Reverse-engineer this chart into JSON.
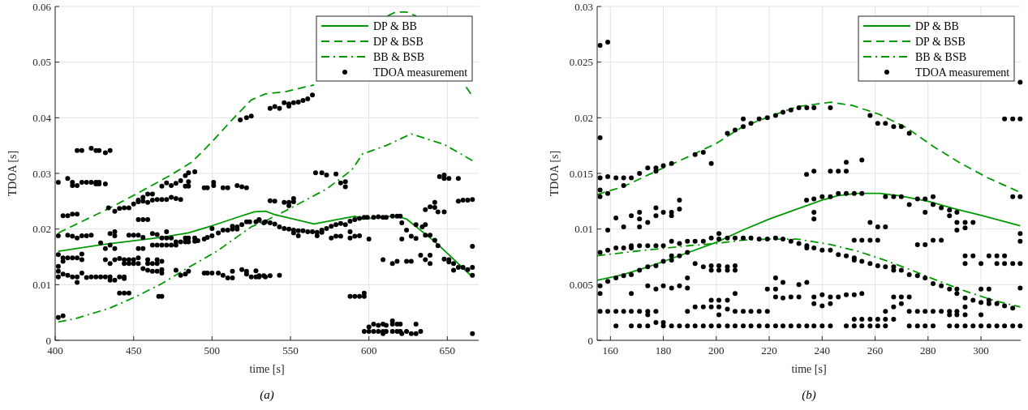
{
  "chart_data": [
    {
      "type": "line",
      "xlabel": "time [s]",
      "ylabel": "TDOA [s]",
      "annotations": [
        "(a)"
      ],
      "xlim": [
        400,
        670
      ],
      "ylim": [
        0,
        0.06
      ],
      "xticks": [
        400,
        450,
        500,
        550,
        600,
        650
      ],
      "yticks": [
        0,
        0.01,
        0.02,
        0.03,
        0.04,
        0.05,
        0.06
      ],
      "grid": true,
      "legend": "top right",
      "series": [
        {
          "name": "DP & BB",
          "type": "line",
          "line_style": "solid",
          "color": "#009900",
          "x": [
            402,
            430,
            468,
            485,
            499,
            516,
            527,
            534,
            540,
            565,
            591,
            596,
            617,
            624,
            643,
            666
          ],
          "values": [
            0.016,
            0.0172,
            0.0185,
            0.0193,
            0.0205,
            0.0221,
            0.0231,
            0.0232,
            0.0226,
            0.0209,
            0.0223,
            0.0218,
            0.0224,
            0.0218,
            0.0175,
            0.0114
          ]
        },
        {
          "name": "DP & BSB",
          "type": "line",
          "line_style": "dashed",
          "color": "#009900",
          "x": [
            402,
            435,
            451,
            473,
            487,
            499,
            515,
            525,
            534,
            547,
            565,
            590,
            612,
            617,
            624,
            630,
            645,
            662,
            666
          ],
          "values": [
            0.0193,
            0.0238,
            0.0262,
            0.0296,
            0.032,
            0.0354,
            0.0403,
            0.0432,
            0.0443,
            0.0447,
            0.0459,
            null,
            0.0583,
            0.059,
            0.059,
            0.0583,
            null,
            0.0455,
            0.0439
          ]
        },
        {
          "name": "BB & BSB",
          "type": "line",
          "line_style": "dashdot",
          "color": "#009900",
          "x": [
            402,
            413,
            435,
            451,
            468,
            485,
            503,
            525,
            535,
            547,
            573,
            589,
            596,
            611,
            627,
            648,
            666
          ],
          "values": [
            0.0033,
            0.0039,
            0.0058,
            0.0078,
            0.0102,
            0.0131,
            0.016,
            0.0204,
            0.0216,
            0.0233,
            0.0272,
            0.0306,
            0.0335,
            0.035,
            0.0371,
            0.0352,
            0.0323
          ]
        },
        {
          "name": "TDOA measurement",
          "type": "scatter",
          "marker": "circle",
          "color": "#000000",
          "x": [
            402,
            408,
            411,
            411,
            414,
            417,
            420,
            423,
            426,
            426,
            428,
            428,
            432,
            414,
            417,
            423,
            426,
            428,
            432,
            435,
            405,
            408,
            411,
            414,
            402,
            408,
            411,
            414,
            417,
            420,
            423,
            429,
            435,
            438,
            438,
            435,
            432,
            438,
            402,
            402,
            405,
            405,
            408,
            411,
            414,
            417,
            417,
            402,
            402,
            405,
            408,
            411,
            414,
            414,
            417,
            420,
            423,
            426,
            429,
            432,
            435,
            435,
            438,
            441,
            444,
            444,
            432,
            435,
            438,
            441,
            444,
            444,
            447,
            447,
            450,
            450,
            453,
            453,
            441,
            444,
            447,
            402,
            405,
            434,
            438,
            441,
            444,
            447,
            450,
            453,
            453,
            456,
            456,
            459,
            459,
            462,
            462,
            465,
            468,
            471,
            474,
            477,
            480,
            453,
            456,
            459,
            447,
            450,
            453,
            456,
            453,
            456,
            456,
            459,
            462,
            465,
            468,
            468,
            459,
            459,
            462,
            465,
            465,
            468,
            462,
            465,
            468,
            471,
            474,
            477,
            477,
            480,
            483,
            485,
            489,
            491,
            495,
            497,
            500,
            500,
            504,
            507,
            510,
            513,
            513,
            516,
            516,
            519,
            522,
            524,
            528,
            530,
            534,
            462,
            465,
            468,
            471,
            471,
            474,
            483,
            485,
            489,
            468,
            471,
            474,
            477,
            480,
            483,
            483,
            485,
            485,
            485,
            489,
            466,
            468,
            477,
            480,
            483,
            485,
            495,
            497,
            500,
            504,
            507,
            510,
            513,
            513,
            519,
            522,
            522,
            525,
            528,
            528,
            530,
            534,
            495,
            497,
            501,
            501,
            507,
            510,
            516,
            519,
            522,
            518,
            522,
            525,
            537,
            540,
            543,
            546,
            549,
            549,
            552,
            555,
            558,
            561,
            564,
            566,
            570,
            573,
            579,
            582,
            585,
            585,
            537,
            540,
            546,
            549,
            549,
            552,
            552,
            530,
            533,
            537,
            540,
            543,
            546,
            549,
            552,
            552,
            555,
            555,
            558,
            561,
            564,
            567,
            567,
            570,
            570,
            573,
            576,
            579,
            582,
            585,
            588,
            591,
            594,
            597,
            599,
            603,
            606,
            609,
            611,
            615,
            618,
            620,
            576,
            579,
            582,
            588,
            588,
            591,
            594,
            600,
            530,
            533,
            537,
            543,
            588,
            591,
            594,
            597,
            597,
            597,
            600,
            600,
            603,
            603,
            606,
            606,
            609,
            609,
            609,
            611,
            611,
            615,
            615,
            615,
            618,
            618,
            620,
            620,
            621,
            624,
            627,
            630,
            630,
            633,
            609,
            615,
            618,
            624,
            627,
            621,
            624,
            627,
            630,
            621,
            630,
            634,
            636,
            636,
            639,
            642,
            644,
            636,
            639,
            642,
            642,
            644,
            648,
            633,
            636,
            639,
            639,
            648,
            651,
            651,
            654,
            654,
            657,
            660,
            663,
            666,
            666,
            645,
            648,
            648,
            651,
            657,
            657,
            660,
            663,
            666,
            666,
            666
          ],
          "values": [
            0.0284,
            0.0291,
            0.0284,
            0.0278,
            0.0278,
            0.0284,
            0.0284,
            0.0284,
            0.0284,
            0.0281,
            0.0284,
            0.0281,
            0.0281,
            0.0341,
            0.0341,
            0.0345,
            0.0341,
            0.0341,
            0.0337,
            0.0341,
            0.0224,
            0.0224,
            0.0227,
            0.0227,
            0.0188,
            0.0189,
            0.0187,
            0.0184,
            0.0188,
            0.0188,
            0.0189,
            0.0175,
            0.0192,
            0.0195,
            0.0188,
            0.0171,
            0.0165,
            0.0165,
            0.0154,
            0.0133,
            0.0148,
            0.0142,
            0.0148,
            0.0148,
            0.0148,
            0.0155,
            0.0145,
            0.0124,
            0.0114,
            0.0119,
            0.0117,
            0.0114,
            0.0114,
            0.0104,
            0.0121,
            0.0113,
            0.0114,
            0.0114,
            0.0114,
            0.0114,
            0.0114,
            0.0108,
            0.0108,
            0.0114,
            0.0114,
            0.0111,
            0.0145,
            0.0138,
            0.0145,
            0.0147,
            0.0145,
            0.0138,
            0.0145,
            0.0138,
            0.0145,
            0.0138,
            0.0148,
            0.0138,
            0.0085,
            0.0085,
            0.0085,
            0.0041,
            0.0044,
            0.0238,
            0.0232,
            0.0237,
            0.0238,
            0.0238,
            0.0245,
            0.0249,
            0.0252,
            0.0257,
            0.025,
            0.0248,
            0.0263,
            0.0263,
            0.0252,
            0.0253,
            0.0253,
            0.0253,
            0.0257,
            0.0255,
            0.0253,
            0.0217,
            0.0217,
            0.0217,
            0.0189,
            0.0189,
            0.0189,
            0.0185,
            0.0165,
            0.0165,
            0.0129,
            0.0126,
            0.0124,
            0.0124,
            0.0127,
            0.0121,
            0.0145,
            0.0138,
            0.0138,
            0.0145,
            0.0138,
            0.0142,
            0.0171,
            0.0171,
            0.0171,
            0.0171,
            0.0171,
            0.0171,
            0.0177,
            0.0177,
            0.0177,
            0.0177,
            0.0178,
            0.0179,
            0.0182,
            0.0185,
            0.0188,
            0.0201,
            0.0193,
            0.0198,
            0.0198,
            0.02,
            0.0205,
            0.02,
            0.0204,
            0.0208,
            0.0213,
            0.0213,
            0.0213,
            0.0216,
            0.0213,
            0.0192,
            0.019,
            0.0184,
            0.0195,
            0.0184,
            0.0184,
            0.0184,
            0.0184,
            0.0184,
            0.0277,
            0.0283,
            0.0278,
            0.0282,
            0.0287,
            0.0296,
            0.0277,
            0.0301,
            0.0285,
            0.0277,
            0.0303,
            0.0079,
            0.0079,
            0.0126,
            0.0117,
            0.0119,
            0.0124,
            0.0121,
            0.0121,
            0.0121,
            0.0121,
            0.0117,
            0.0112,
            0.0124,
            0.0112,
            0.0127,
            0.0124,
            0.0119,
            0.0114,
            0.0125,
            0.0114,
            0.0114,
            0.0114,
            0.0274,
            0.0274,
            0.0284,
            0.0278,
            0.0274,
            0.0274,
            0.0278,
            0.0276,
            0.0274,
            0.0396,
            0.04,
            0.0403,
            0.0417,
            0.042,
            0.0417,
            0.0427,
            0.0425,
            0.0421,
            0.0427,
            0.0428,
            0.0431,
            0.0434,
            0.0441,
            0.0301,
            0.0301,
            0.0297,
            0.0299,
            0.0283,
            0.0285,
            0.0276,
            0.0251,
            0.025,
            0.0248,
            0.0248,
            0.0242,
            0.0255,
            0.0249,
            0.0217,
            0.0211,
            0.0211,
            0.0209,
            0.0204,
            0.0201,
            0.02,
            0.0198,
            0.0193,
            0.0197,
            0.0188,
            0.0197,
            0.0195,
            0.0195,
            0.0194,
            0.0188,
            0.0194,
            0.0198,
            0.0201,
            0.0205,
            0.0208,
            0.021,
            0.0208,
            0.0214,
            0.0217,
            0.0219,
            0.0221,
            0.0221,
            0.0221,
            0.0222,
            0.0221,
            0.0221,
            0.0223,
            0.0223,
            0.0223,
            0.0184,
            0.0187,
            0.0187,
            0.0195,
            0.0184,
            0.0187,
            0.0188,
            0.0182,
            0.0116,
            0.0116,
            0.0116,
            0.0117,
            0.0079,
            0.0079,
            0.0079,
            0.0085,
            0.0079,
            0.0016,
            0.0016,
            0.0024,
            0.0016,
            0.0029,
            0.0016,
            0.0027,
            0.0016,
            0.0012,
            0.0029,
            0.0016,
            0.0027,
            0.0016,
            0.0035,
            0.0029,
            0.0016,
            0.0029,
            0.0016,
            0.0029,
            0.0012,
            0.0016,
            0.0012,
            0.0012,
            0.0029,
            0.0016,
            0.0145,
            0.0138,
            0.0142,
            0.0142,
            0.0142,
            0.0211,
            0.0198,
            0.0187,
            0.0183,
            0.0182,
            0.0208,
            0.0204,
            0.0208,
            0.0189,
            0.0189,
            0.018,
            0.017,
            0.0235,
            0.024,
            0.0248,
            0.0239,
            0.0231,
            0.0231,
            0.0153,
            0.0145,
            0.0153,
            0.0138,
            0.0146,
            0.0145,
            0.0141,
            0.0126,
            0.0138,
            0.0131,
            0.0131,
            0.0127,
            0.0131,
            0.0117,
            0.0294,
            0.0297,
            0.0291,
            0.0291,
            0.0291,
            0.025,
            0.0252,
            0.0252,
            0.0253,
            0.0169,
            0.0012
          ]
        }
      ]
    },
    {
      "type": "line",
      "xlabel": "time [s]",
      "ylabel": "TDOA [s]",
      "annotations": [
        "(b)"
      ],
      "xlim": [
        155,
        315
      ],
      "ylim": [
        0,
        0.03
      ],
      "xticks": [
        160,
        180,
        200,
        220,
        240,
        260,
        280,
        300
      ],
      "yticks": [
        0,
        0.005,
        0.01,
        0.015,
        0.02,
        0.025,
        0.03
      ],
      "grid": true,
      "legend": "top right",
      "series": [
        {
          "name": "DP & BB",
          "type": "line",
          "line_style": "solid",
          "color": "#009900",
          "x": [
            155,
            164.8,
            173,
            180.2,
            189.5,
            200,
            210,
            220,
            230.6,
            240,
            246,
            253.5,
            261.7,
            268.8,
            280,
            290.3,
            300.5,
            314.8
          ],
          "values": [
            0.0054,
            0.0059,
            0.0065,
            0.0071,
            0.0079,
            0.0088,
            0.0099,
            0.0109,
            0.0118,
            0.0126,
            0.013,
            0.0132,
            0.0132,
            0.013,
            0.0125,
            0.0118,
            0.0112,
            0.0103
          ]
        },
        {
          "name": "DP & BSB",
          "type": "line",
          "line_style": "dashed",
          "color": "#009900",
          "x": [
            155,
            164.8,
            178.2,
            189.5,
            200,
            210,
            220,
            230.6,
            243.3,
            251.5,
            261.7,
            271.9,
            282.1,
            292.4,
            302.6,
            314.8
          ],
          "values": [
            0.0131,
            0.0138,
            0.0153,
            0.0165,
            0.0177,
            0.0192,
            0.0201,
            0.021,
            0.0214,
            0.0211,
            0.0203,
            0.0191,
            0.0174,
            0.0159,
            0.0146,
            0.0133
          ]
        },
        {
          "name": "BB & BSB",
          "type": "line",
          "line_style": "dashdot",
          "color": "#009900",
          "x": [
            155,
            173,
            189.5,
            200,
            210,
            220,
            230.6,
            243.3,
            253.5,
            263.7,
            273.9,
            284.2,
            294.4,
            304.6,
            314.8
          ],
          "values": [
            0.0076,
            0.0081,
            0.0085,
            0.0087,
            0.009,
            0.0091,
            0.0091,
            0.0086,
            0.008,
            0.0072,
            0.0063,
            0.0053,
            0.0044,
            0.0036,
            0.003
          ]
        },
        {
          "name": "TDOA measurement",
          "type": "scatter",
          "marker": "circle",
          "color": "#000000",
          "x": [
            156.1,
            159,
            156.1,
            156.1,
            159,
            156.1,
            159,
            156.1,
            162.1,
            165,
            167.9,
            165,
            171,
            174.1,
            177.2,
            177.2,
            180,
            183.1,
            192,
            195.1,
            198.1,
            204.2,
            207.1,
            210.2,
            210.2,
            213.1,
            216.2,
            219.3,
            222.4,
            225.2,
            228.2,
            231.2,
            234.2,
            162.1,
            165,
            167.9,
            171,
            171,
            171,
            174.1,
            177.2,
            177.2,
            180,
            183.1,
            183.1,
            186.1,
            186.1,
            156.1,
            159,
            159,
            162.1,
            165,
            167.9,
            167.9,
            171,
            174.1,
            177.2,
            180,
            183.1,
            186.1,
            189.1,
            192,
            195.1,
            198.1,
            201,
            201,
            204.2,
            207.1,
            210.2,
            213.1,
            216.2,
            219.3,
            222.4,
            225.2,
            228.2,
            231.2,
            234.2,
            234.2,
            183.1,
            186.1,
            189.1,
            192,
            195.1,
            198.1,
            198.1,
            201,
            201,
            204.2,
            204.2,
            207.1,
            207.1,
            156.1,
            159,
            162.1,
            165,
            167.9,
            171,
            174.1,
            177.2,
            180,
            183.1,
            156.1,
            167.9,
            174.1,
            177.2,
            180,
            183.1,
            186.1,
            189.1,
            189.1,
            192,
            195.1,
            198.1,
            198.1,
            201,
            201,
            201,
            204.2,
            204.2,
            207.1,
            219.3,
            222.4,
            222.4,
            222.4,
            225.2,
            225.2,
            228.2,
            231.2,
            231.2,
            234.2,
            156.1,
            159,
            162.1,
            165,
            167.9,
            171,
            174.1,
            177.2,
            189.1,
            207.1,
            210.2,
            213.1,
            216.2,
            219.3,
            174.1,
            162.1,
            167.9,
            171,
            174.1,
            180,
            183.1,
            186.1,
            189.1,
            192,
            195.1,
            198.1,
            201,
            204.2,
            207.1,
            210.2,
            213.1,
            216.2,
            219.3,
            222.4,
            225.2,
            228.2,
            231.2,
            234.2,
            177.2,
            180,
            236.9,
            243.1,
            258.1,
            261,
            263.9,
            267,
            269.9,
            272.9,
            308.9,
            312,
            314.8,
            314.8,
            234.1,
            236.9,
            243.1,
            246.1,
            249.1,
            249.1,
            255,
            234.1,
            236.9,
            240,
            243.1,
            246.1,
            249.1,
            252.1,
            255,
            263.9,
            267,
            269.9,
            272.9,
            276,
            278.9,
            278.9,
            281.9,
            281.9,
            285,
            288.1,
            288.1,
            290.9,
            290.9,
            294,
            297,
            290.9,
            294,
            258.1,
            261,
            263.9,
            236.9,
            236.9,
            312,
            314.8,
            236.9,
            240,
            243.1,
            246.1,
            249.1,
            252.1,
            252.1,
            252.1,
            255,
            255,
            258.1,
            258.1,
            261,
            261,
            263.9,
            267,
            267,
            269.9,
            272.9,
            276,
            276,
            278.9,
            278.9,
            281.9,
            281.9,
            285,
            285,
            288.1,
            290.9,
            290.9,
            294,
            294,
            294,
            297,
            297,
            300,
            300,
            303,
            303,
            303,
            306,
            308.9,
            308.9,
            312,
            314.8,
            314.8,
            314.8,
            306,
            308.9,
            312,
            300,
            303,
            306,
            236.9,
            236.9,
            240,
            240,
            243.1,
            243.1,
            246.1,
            249.1,
            252.1,
            255,
            263.9,
            267,
            267,
            269.9,
            269.9,
            272.9,
            272.9,
            276,
            278.9,
            281.9,
            285,
            288.1,
            288.1,
            290.9,
            290.9,
            294,
            294,
            300,
            314.8,
            236.9,
            240,
            243.1,
            249.1,
            252.1,
            255,
            258.1,
            261,
            263.9,
            272.9,
            276,
            278.9,
            281.9,
            288.1,
            290.9,
            294,
            297,
            300,
            303,
            306,
            308.9,
            312,
            314.8,
            252.1,
            255,
            258.1,
            261,
            263.9,
            267
          ],
          "values": [
            0.0265,
            0.0268,
            0.0182,
            0.0146,
            0.0147,
            0.0135,
            0.0132,
            0.0129,
            0.0146,
            0.0146,
            0.0146,
            0.0139,
            0.015,
            0.0155,
            0.0155,
            0.0152,
            0.0157,
            0.0159,
            0.0167,
            0.0169,
            0.0159,
            0.0186,
            0.0189,
            0.0199,
            0.0192,
            0.0195,
            0.0199,
            0.02,
            0.0202,
            0.0205,
            0.0207,
            0.0209,
            0.0209,
            0.011,
            0.0102,
            0.0112,
            0.0115,
            0.0109,
            0.0102,
            0.0106,
            0.0119,
            0.0112,
            0.0115,
            0.0115,
            0.0112,
            0.0126,
            0.0118,
            0.0079,
            0.0099,
            0.0081,
            0.0083,
            0.0083,
            0.0085,
            0.0083,
            0.0085,
            0.0085,
            0.0085,
            0.0085,
            0.0089,
            0.0087,
            0.0089,
            0.0089,
            0.0089,
            0.0092,
            0.0096,
            0.0091,
            0.0092,
            0.0092,
            0.0092,
            0.0092,
            0.0091,
            0.0091,
            0.0092,
            0.0091,
            0.0089,
            0.0087,
            0.0085,
            0.0083,
            0.0076,
            0.0076,
            0.0079,
            0.0069,
            0.0066,
            0.0067,
            0.0063,
            0.0067,
            0.0063,
            0.0066,
            0.0063,
            0.0067,
            0.0063,
            0.0049,
            0.0053,
            0.0056,
            0.0058,
            0.0059,
            0.0063,
            0.0066,
            0.0067,
            0.0071,
            0.0072,
            0.0042,
            0.0042,
            0.0049,
            0.0046,
            0.0049,
            0.0047,
            0.0049,
            0.0056,
            0.0047,
            0.003,
            0.003,
            0.0036,
            0.003,
            0.0036,
            0.003,
            0.0023,
            0.0036,
            0.0028,
            0.0042,
            0.0046,
            0.0056,
            0.0046,
            0.0039,
            0.0052,
            0.0038,
            0.0039,
            0.005,
            0.0039,
            0.0052,
            0.0026,
            0.0026,
            0.0026,
            0.0026,
            0.0026,
            0.0026,
            0.0026,
            0.0026,
            0.0026,
            0.0026,
            0.0026,
            0.0026,
            0.0026,
            0.0026,
            0.0023,
            0.0013,
            0.0013,
            0.0013,
            0.0013,
            0.0013,
            0.0013,
            0.0013,
            0.0013,
            0.0013,
            0.0013,
            0.0013,
            0.0013,
            0.0013,
            0.0013,
            0.0013,
            0.0013,
            0.0013,
            0.0013,
            0.0013,
            0.0013,
            0.0013,
            0.0013,
            0.0013,
            0.0016,
            0.0016,
            0.0209,
            0.0209,
            0.0202,
            0.0195,
            0.0195,
            0.0192,
            0.0192,
            0.0186,
            0.0199,
            0.0199,
            0.0199,
            0.0232,
            0.0149,
            0.0152,
            0.0152,
            0.0152,
            0.0152,
            0.016,
            0.0162,
            0.0126,
            0.0127,
            0.0129,
            0.0129,
            0.0132,
            0.0132,
            0.0132,
            0.0132,
            0.0129,
            0.0129,
            0.0129,
            0.0122,
            0.0127,
            0.0127,
            0.0115,
            0.0129,
            0.0122,
            0.0119,
            0.0117,
            0.0112,
            0.0115,
            0.0106,
            0.0106,
            0.0106,
            0.0099,
            0.0101,
            0.0106,
            0.0102,
            0.0102,
            0.0115,
            0.0109,
            0.0129,
            0.0129,
            0.0083,
            0.0081,
            0.0081,
            0.0077,
            0.0076,
            0.009,
            0.0074,
            0.0072,
            0.009,
            0.0071,
            0.009,
            0.0069,
            0.009,
            0.0067,
            0.0066,
            0.0066,
            0.0063,
            0.0063,
            0.0059,
            0.0058,
            0.0086,
            0.0056,
            0.0086,
            0.009,
            0.0051,
            0.009,
            0.0049,
            0.0046,
            0.0046,
            0.0042,
            0.0076,
            0.0069,
            0.0038,
            0.0076,
            0.0036,
            0.0069,
            0.0034,
            0.0046,
            0.0036,
            0.0076,
            0.0076,
            0.0076,
            0.0069,
            0.0069,
            0.0069,
            0.0089,
            0.0096,
            0.0033,
            0.0031,
            0.0029,
            0.0046,
            0.0033,
            0.0069,
            0.0039,
            0.0033,
            0.0031,
            0.0041,
            0.0039,
            0.0033,
            0.0039,
            0.0041,
            0.0041,
            0.0042,
            0.0026,
            0.0039,
            0.003,
            0.0039,
            0.0033,
            0.0039,
            0.0026,
            0.0026,
            0.0026,
            0.0026,
            0.0026,
            0.0026,
            0.0023,
            0.0026,
            0.0023,
            0.003,
            0.0023,
            0.0023,
            0.0047,
            0.0013,
            0.0013,
            0.0013,
            0.0013,
            0.0013,
            0.0013,
            0.0013,
            0.0013,
            0.0013,
            0.0013,
            0.0013,
            0.0013,
            0.0013,
            0.0013,
            0.0013,
            0.0013,
            0.0013,
            0.0013,
            0.0013,
            0.0013,
            0.0013,
            0.0013,
            0.0013,
            0.0019,
            0.0019,
            0.0019,
            0.0019,
            0.0019,
            0.0019
          ]
        }
      ]
    }
  ]
}
